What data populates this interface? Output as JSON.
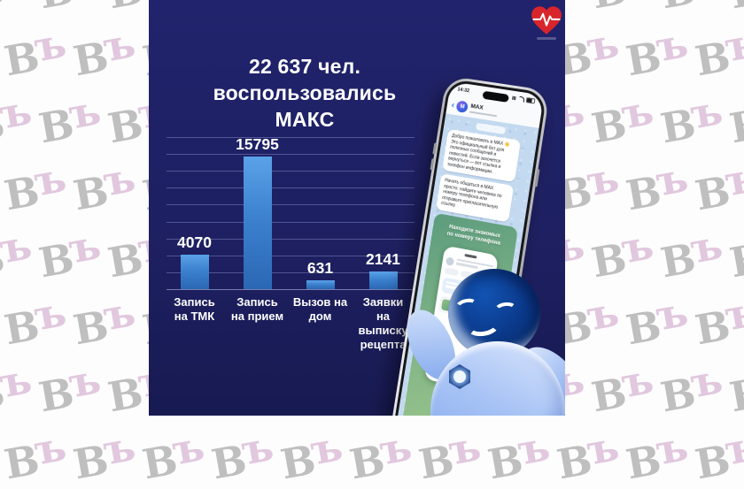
{
  "watermark": {
    "letter_primary": "В",
    "letter_secondary": "ъ",
    "color_primary": "#9a9a9a",
    "color_secondary": "#d4b0cf"
  },
  "panel": {
    "background_color": "#1e2063",
    "title": "22 637 чел.\nвоспользовались\nМАКС"
  },
  "logo": {
    "icon": "heart-pulse-icon",
    "heart_color": "#d8252b",
    "pulse_color": "#ffffff"
  },
  "chart_data": {
    "type": "bar",
    "title": "22 637 чел. воспользовались МАКС",
    "total": 22637,
    "categories": [
      "Запись на ТМК",
      "Запись на прием",
      "Вызов на дом",
      "Заявки на выписку рецепта"
    ],
    "category_lines": [
      [
        "Запись",
        "на ТМК"
      ],
      [
        "Запись",
        "на прием"
      ],
      [
        "Вызов на",
        "дом"
      ],
      [
        "Заявки",
        "на",
        "выписку",
        "рецепта"
      ]
    ],
    "values": [
      4070,
      15795,
      631,
      2141
    ],
    "data_labels": [
      "4070",
      "15795",
      "631",
      "2141"
    ],
    "bar_color_top": "#5aa2e8",
    "bar_color_bottom": "#2b67b4",
    "grid": true,
    "gridline_count": 10,
    "ylim": [
      0,
      16000
    ],
    "legend": false,
    "xlabel": "",
    "ylabel": ""
  },
  "phone": {
    "status_time": "14:32",
    "chat_name": "MAX",
    "avatar_letter": "M",
    "messages": [
      {
        "text": "Добро пожаловать в МАХ 👋 Это официальный бот для полезных сообщений и новостей. Если захочется вернуться — вот ссылка и телефон информации."
      },
      {
        "text": "Начать общаться в МАХ просто: найдите человека по номеру телефона или отправьте пригласительную ссылку."
      }
    ],
    "image_caption": "Находите знакомых\nпо номеру телефона"
  }
}
